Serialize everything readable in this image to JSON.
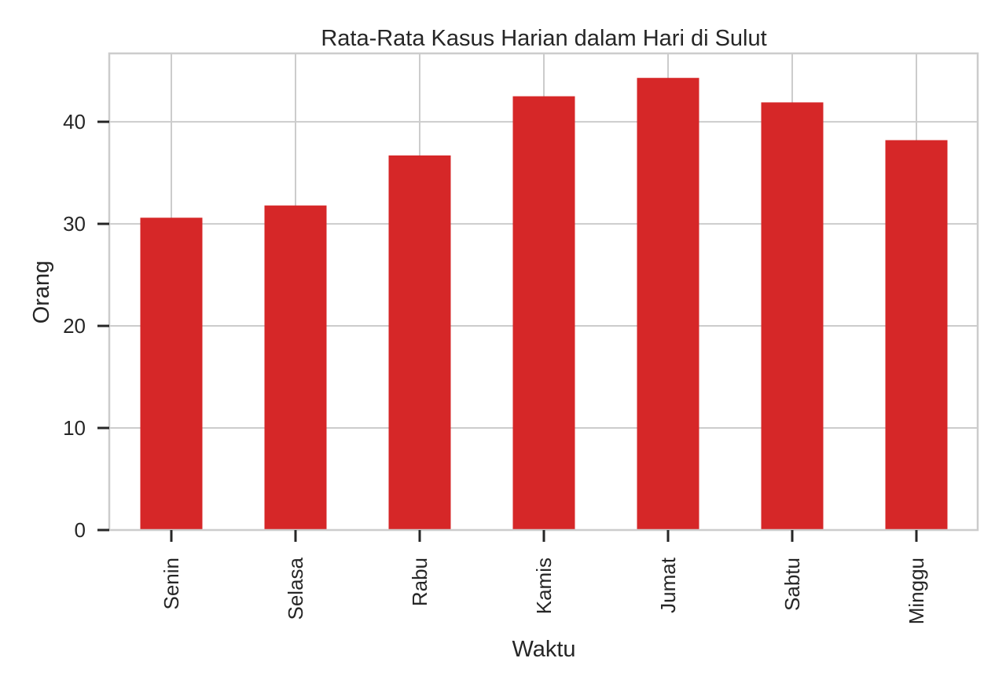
{
  "chart_data": {
    "type": "bar",
    "title": "Rata-Rata Kasus Harian dalam Hari di Sulut",
    "xlabel": "Waktu",
    "ylabel": "Orang",
    "categories": [
      "Senin",
      "Selasa",
      "Rabu",
      "Kamis",
      "Jumat",
      "Sabtu",
      "Minggu"
    ],
    "values": [
      30.6,
      31.8,
      36.7,
      42.5,
      44.3,
      41.9,
      38.2
    ],
    "ylim": [
      0,
      46.7
    ],
    "yticks": [
      0,
      10,
      20,
      30,
      40
    ],
    "grid": true,
    "bar_color": "#d62728",
    "grid_color": "#cccccc",
    "text_color": "#262626"
  }
}
